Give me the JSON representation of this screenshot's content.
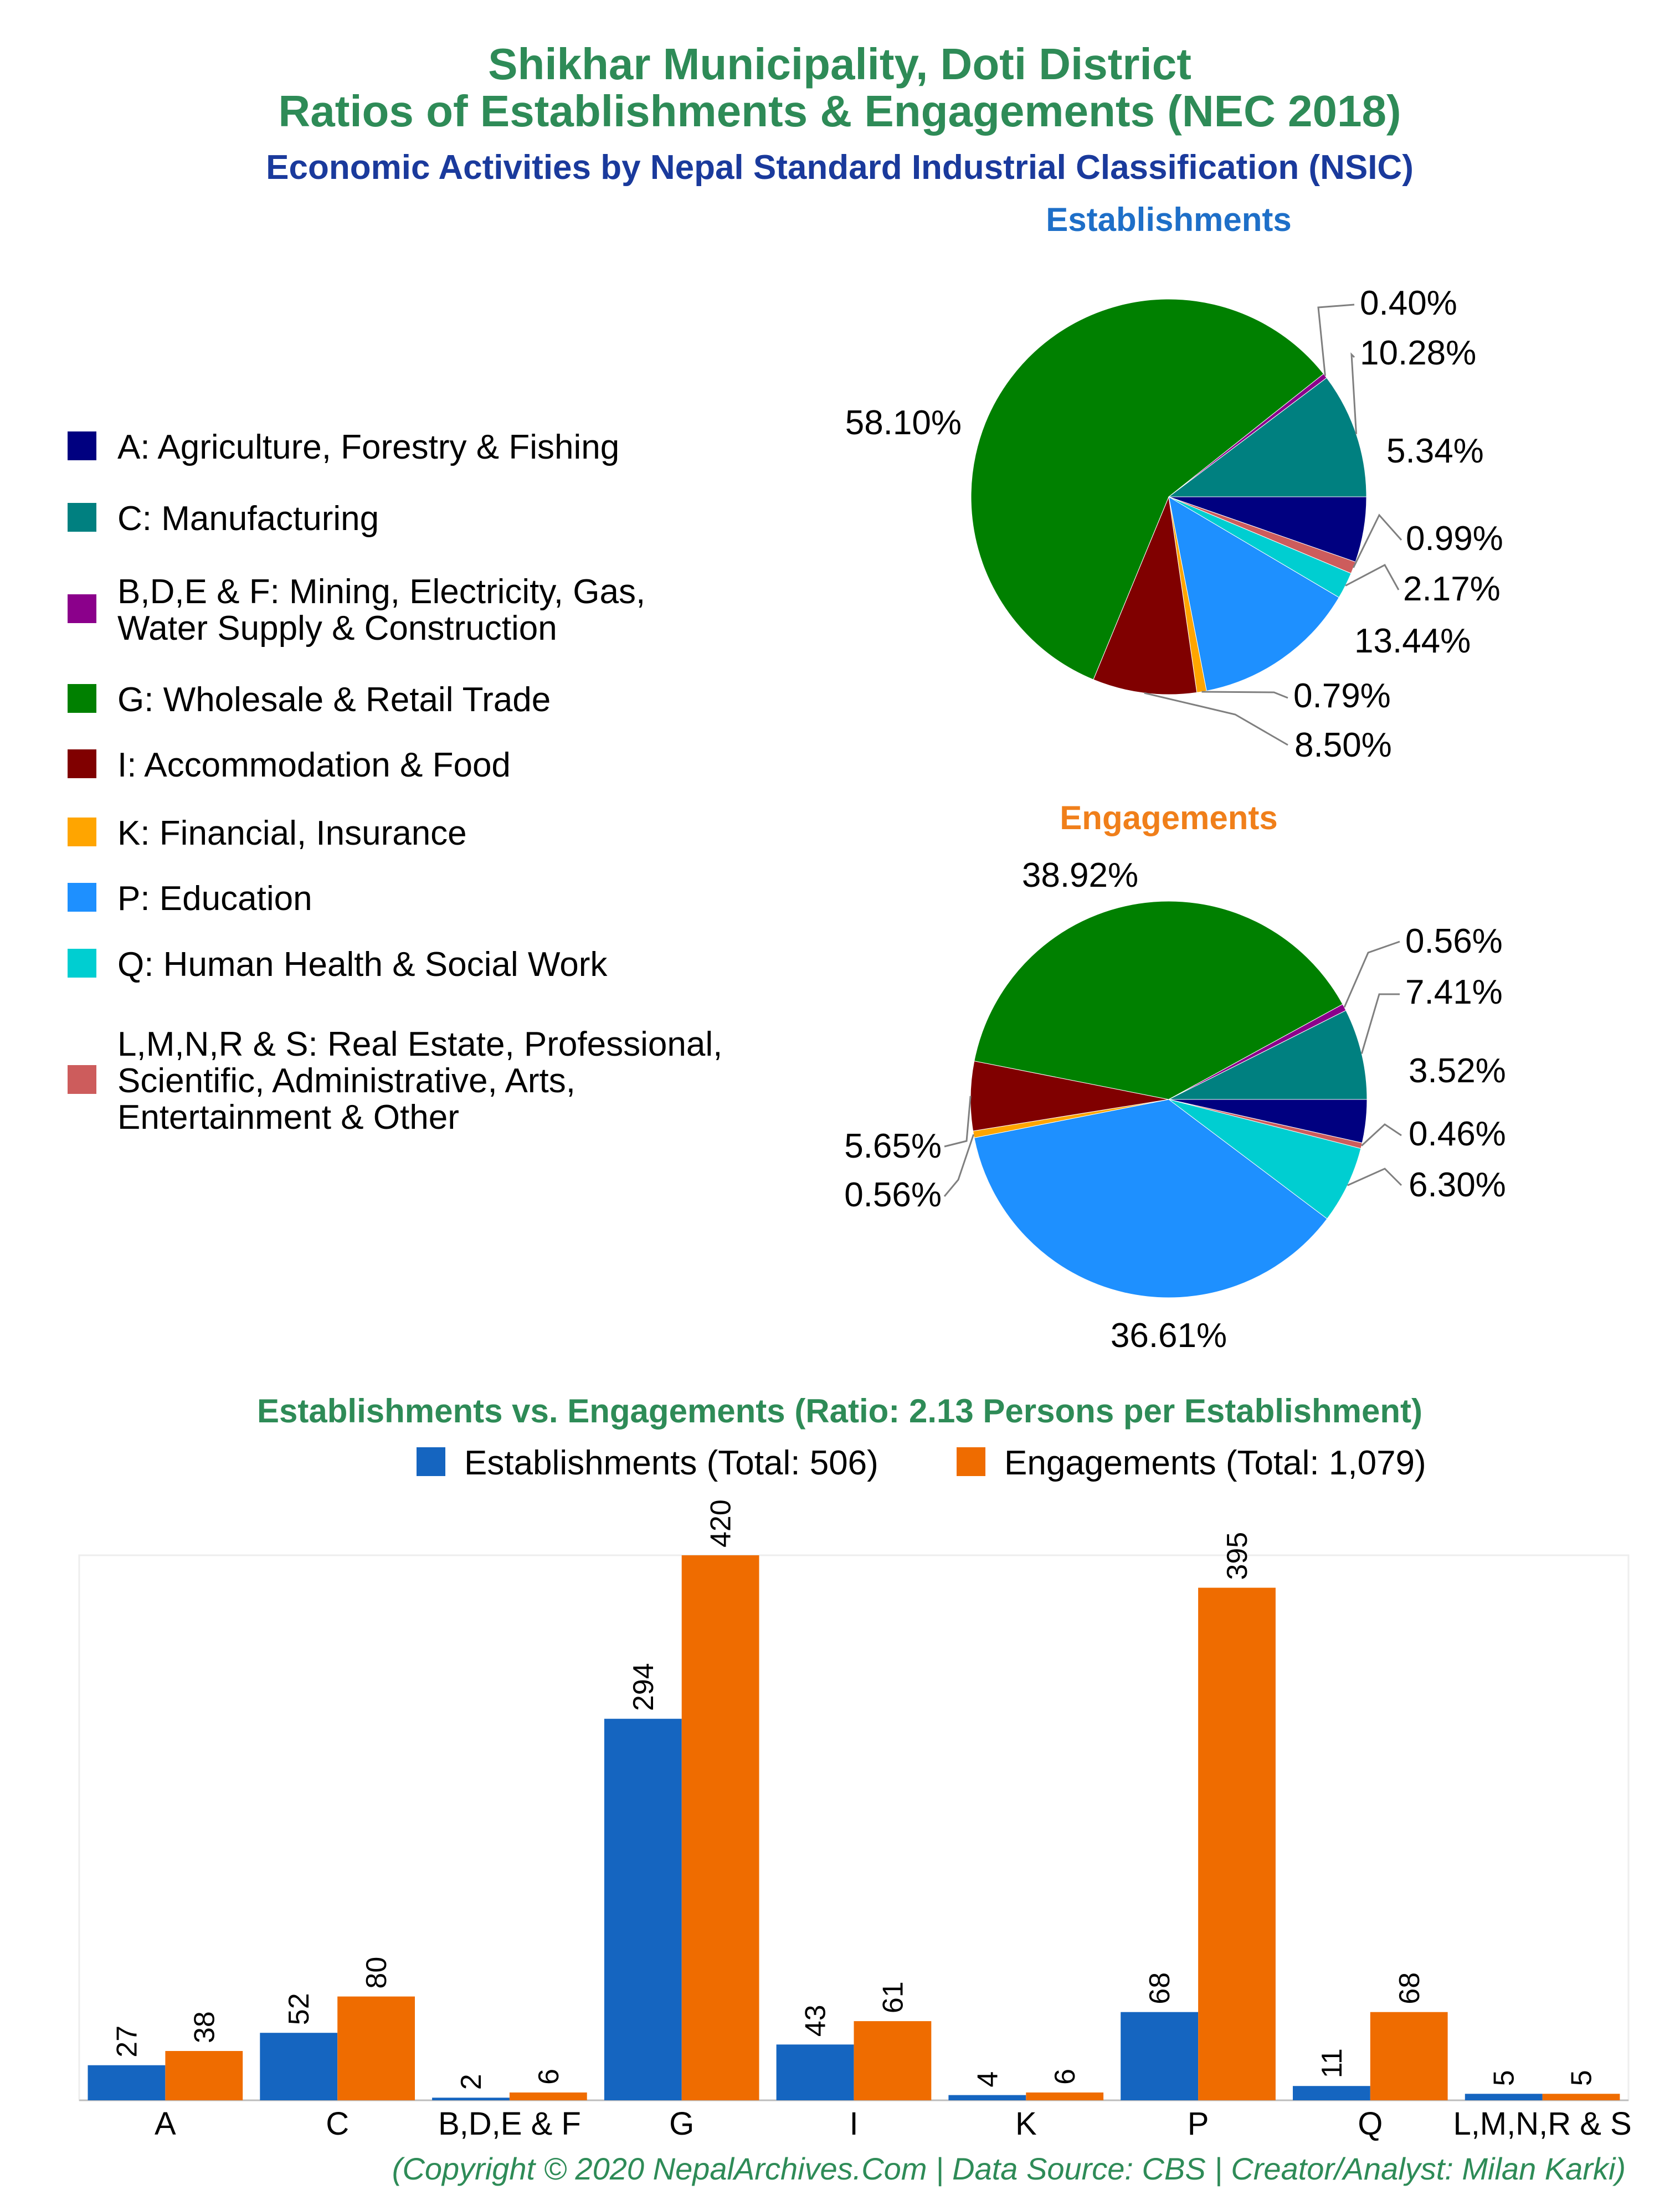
{
  "title_line1": "Shikhar Municipality, Doti District",
  "title_line2": "Ratios of Establishments & Engagements (NEC 2018)",
  "subtitle": "Economic Activities by Nepal Standard Industrial Classification (NSIC)",
  "colors": {
    "title": "#2e8b57",
    "subtitle": "#1a3a9c",
    "establishments_heading": "#1e6fc8",
    "engagements_heading": "#f07f1a",
    "bar_establishments": "#1565c0",
    "bar_engagements": "#ef6c00"
  },
  "legend": [
    {
      "label": "A: Agriculture, Forestry & Fishing",
      "color": "#000080"
    },
    {
      "label": "C: Manufacturing",
      "color": "#008080"
    },
    {
      "label": "B,D,E & F: Mining, Electricity, Gas,\nWater Supply & Construction",
      "color": "#8b008b"
    },
    {
      "label": "G: Wholesale & Retail Trade",
      "color": "#008000"
    },
    {
      "label": "I: Accommodation & Food",
      "color": "#800000"
    },
    {
      "label": "K: Financial, Insurance",
      "color": "#ffa500"
    },
    {
      "label": "P: Education",
      "color": "#1e90ff"
    },
    {
      "label": "Q: Human Health & Social Work",
      "color": "#00ced1"
    },
    {
      "label": "L,M,N,R & S: Real Estate, Professional,\nScientific, Administrative, Arts,\nEntertainment & Other",
      "color": "#cd5c5c"
    }
  ],
  "chart_data": [
    {
      "type": "pie",
      "title": "Establishments",
      "slices": [
        {
          "category": "A",
          "value": 5.34,
          "label": "5.34%",
          "color": "#000080"
        },
        {
          "category": "L,M,N,R & S",
          "value": 0.99,
          "label": "0.99%",
          "color": "#cd5c5c"
        },
        {
          "category": "Q",
          "value": 2.17,
          "label": "2.17%",
          "color": "#00ced1"
        },
        {
          "category": "P",
          "value": 13.44,
          "label": "13.44%",
          "color": "#1e90ff"
        },
        {
          "category": "K",
          "value": 0.79,
          "label": "0.79%",
          "color": "#ffa500"
        },
        {
          "category": "I",
          "value": 8.5,
          "label": "8.50%",
          "color": "#800000"
        },
        {
          "category": "G",
          "value": 58.1,
          "label": "58.10%",
          "color": "#008000"
        },
        {
          "category": "B,D,E & F",
          "value": 0.4,
          "label": "0.40%",
          "color": "#8b008b"
        },
        {
          "category": "C",
          "value": 10.28,
          "label": "10.28%",
          "color": "#008080"
        }
      ]
    },
    {
      "type": "pie",
      "title": "Engagements",
      "slices": [
        {
          "category": "A",
          "value": 3.52,
          "label": "3.52%",
          "color": "#000080"
        },
        {
          "category": "L,M,N,R & S",
          "value": 0.46,
          "label": "0.46%",
          "color": "#cd5c5c"
        },
        {
          "category": "Q",
          "value": 6.3,
          "label": "6.30%",
          "color": "#00ced1"
        },
        {
          "category": "P",
          "value": 36.61,
          "label": "36.61%",
          "color": "#1e90ff"
        },
        {
          "category": "K",
          "value": 0.56,
          "label": "0.56%",
          "color": "#ffa500"
        },
        {
          "category": "I",
          "value": 5.65,
          "label": "5.65%",
          "color": "#800000"
        },
        {
          "category": "G",
          "value": 38.92,
          "label": "38.92%",
          "color": "#008000"
        },
        {
          "category": "B,D,E & F",
          "value": 0.56,
          "label": "0.56%",
          "color": "#8b008b"
        },
        {
          "category": "C",
          "value": 7.41,
          "label": "7.41%",
          "color": "#008080"
        }
      ]
    },
    {
      "type": "bar",
      "title": "Establishments vs. Engagements (Ratio: 2.13 Persons per Establishment)",
      "categories": [
        "A",
        "C",
        "B,D,E & F",
        "G",
        "I",
        "K",
        "P",
        "Q",
        "L,M,N,R & S"
      ],
      "series": [
        {
          "name": "Establishments (Total: 506)",
          "values": [
            27,
            52,
            2,
            294,
            43,
            4,
            68,
            11,
            5
          ]
        },
        {
          "name": "Engagements (Total: 1,079)",
          "values": [
            38,
            80,
            6,
            420,
            61,
            6,
            395,
            68,
            5
          ]
        }
      ],
      "ylim": [
        0,
        420
      ],
      "grid": false,
      "legend_position": "top"
    }
  ],
  "footer": "(Copyright © 2020 NepalArchives.Com | Data Source: CBS | Creator/Analyst: Milan Karki)"
}
